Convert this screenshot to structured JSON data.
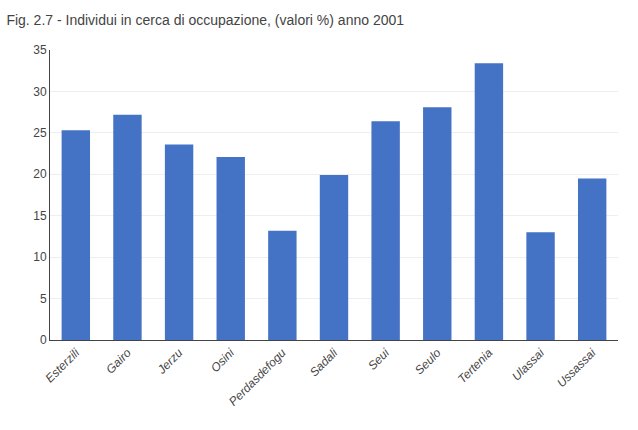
{
  "chart_data": {
    "type": "bar",
    "title": "Fig. 2.7 - Individui in cerca di occupazione, (valori %) anno 2001",
    "categories": [
      "Esterzili",
      "Gairo",
      "Jerzu",
      "Osini",
      "Perdasdefogu",
      "Sadali",
      "Seui",
      "Seulo",
      "Tertenia",
      "Ulassai",
      "Ussassai"
    ],
    "values": [
      25.3,
      27.2,
      23.6,
      22.1,
      13.2,
      19.9,
      26.4,
      28.1,
      33.4,
      13.0,
      19.5
    ],
    "color": "#4472C4",
    "ylim": [
      0,
      35
    ],
    "yticks": [
      0,
      5,
      10,
      15,
      20,
      25,
      30,
      35
    ],
    "grid": true
  }
}
